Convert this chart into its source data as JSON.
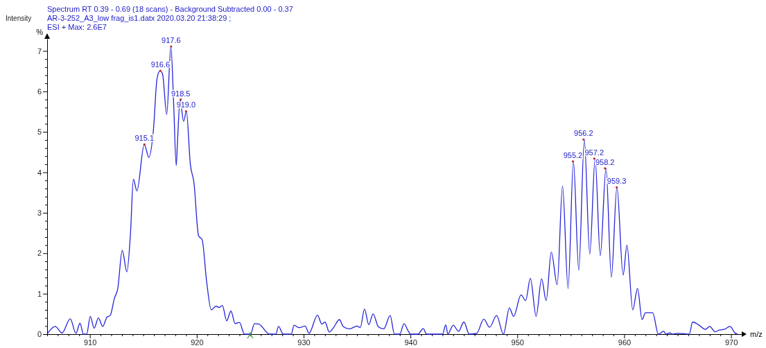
{
  "chart_data": {
    "type": "line",
    "title": "Spectrum RT 0.39 - 0.69 (18 scans) - Background Subtracted 0.00 - 0.37",
    "subtitle": "AR-3-252_A3_low frag_is1.datx 2020.03.20 21:38:29 ;",
    "ylabel": "%",
    "xlabel": "m/z",
    "grid": false,
    "marker": "none",
    "line_style": "solid",
    "annotations": [
      "Intensity",
      "ESI + Max: 2.6E7",
      {
        "text": "915.1",
        "x": 915.1,
        "y": 4.69
      },
      {
        "text": "916.6",
        "x": 916.6,
        "y": 6.51
      },
      {
        "text": "917.6",
        "x": 917.6,
        "y": 7.11
      },
      {
        "text": "918.5",
        "x": 918.5,
        "y": 5.8
      },
      {
        "text": "919.0",
        "x": 919.0,
        "y": 5.51
      },
      {
        "text": "955.2",
        "x": 955.2,
        "y": 4.27
      },
      {
        "text": "956.2",
        "x": 956.2,
        "y": 4.81
      },
      {
        "text": "957.2",
        "x": 957.2,
        "y": 4.34
      },
      {
        "text": "958.2",
        "x": 958.2,
        "y": 4.1
      },
      {
        "text": "959.3",
        "x": 959.3,
        "y": 3.63
      }
    ],
    "xlim": [
      906,
      971
    ],
    "ylim": [
      0,
      7.3
    ],
    "xticks": [
      {
        "value": 906,
        "label": null
      },
      {
        "value": 907,
        "label": null
      },
      {
        "value": 908,
        "label": null
      },
      {
        "value": 909,
        "label": null
      },
      910,
      {
        "value": 911,
        "label": null
      },
      {
        "value": 912,
        "label": null
      },
      {
        "value": 913,
        "label": null
      },
      {
        "value": 914,
        "label": null
      },
      {
        "value": 915,
        "label": null
      },
      {
        "value": 916,
        "label": null
      },
      {
        "value": 917,
        "label": null
      },
      {
        "value": 918,
        "label": null
      },
      {
        "value": 919,
        "label": null
      },
      920,
      {
        "value": 921,
        "label": null
      },
      {
        "value": 922,
        "label": null
      },
      {
        "value": 923,
        "label": null
      },
      {
        "value": 924,
        "label": null
      },
      {
        "value": 925,
        "label": null
      },
      {
        "value": 926,
        "label": null
      },
      {
        "value": 927,
        "label": null
      },
      {
        "value": 928,
        "label": null
      },
      {
        "value": 929,
        "label": null
      },
      930,
      {
        "value": 931,
        "label": null
      },
      {
        "value": 932,
        "label": null
      },
      {
        "value": 933,
        "label": null
      },
      {
        "value": 934,
        "label": null
      },
      {
        "value": 935,
        "label": null
      },
      {
        "value": 936,
        "label": null
      },
      {
        "value": 937,
        "label": null
      },
      {
        "value": 938,
        "label": null
      },
      {
        "value": 939,
        "label": null
      },
      940,
      {
        "value": 941,
        "label": null
      },
      {
        "value": 942,
        "label": null
      },
      {
        "value": 943,
        "label": null
      },
      {
        "value": 944,
        "label": null
      },
      {
        "value": 945,
        "label": null
      },
      {
        "value": 946,
        "label": null
      },
      {
        "value": 947,
        "label": null
      },
      {
        "value": 948,
        "label": null
      },
      {
        "value": 949,
        "label": null
      },
      950,
      {
        "value": 951,
        "label": null
      },
      {
        "value": 952,
        "label": null
      },
      {
        "value": 953,
        "label": null
      },
      {
        "value": 954,
        "label": null
      },
      {
        "value": 955,
        "label": null
      },
      {
        "value": 956,
        "label": null
      },
      {
        "value": 957,
        "label": null
      },
      {
        "value": 958,
        "label": null
      },
      {
        "value": 959,
        "label": null
      },
      960,
      {
        "value": 961,
        "label": null
      },
      {
        "value": 962,
        "label": null
      },
      {
        "value": 963,
        "label": null
      },
      {
        "value": 964,
        "label": null
      },
      {
        "value": 965,
        "label": null
      },
      {
        "value": 966,
        "label": null
      },
      {
        "value": 967,
        "label": null
      },
      {
        "value": 968,
        "label": null
      },
      {
        "value": 969,
        "label": null
      },
      970
    ],
    "yticks": [
      0,
      {
        "value": 0.2,
        "label": null
      },
      {
        "value": 0.4,
        "label": null
      },
      {
        "value": 0.6,
        "label": null
      },
      {
        "value": 0.8,
        "label": null
      },
      1,
      {
        "value": 1.2,
        "label": null
      },
      {
        "value": 1.4,
        "label": null
      },
      {
        "value": 1.6,
        "label": null
      },
      {
        "value": 1.8,
        "label": null
      },
      2,
      {
        "value": 2.2,
        "label": null
      },
      {
        "value": 2.4,
        "label": null
      },
      {
        "value": 2.6,
        "label": null
      },
      {
        "value": 2.8,
        "label": null
      },
      3,
      {
        "value": 3.2,
        "label": null
      },
      {
        "value": 3.4,
        "label": null
      },
      {
        "value": 3.6,
        "label": null
      },
      {
        "value": 3.8,
        "label": null
      },
      4,
      {
        "value": 4.2,
        "label": null
      },
      {
        "value": 4.4,
        "label": null
      },
      {
        "value": 4.6,
        "label": null
      },
      {
        "value": 4.8,
        "label": null
      },
      5,
      {
        "value": 5.2,
        "label": null
      },
      {
        "value": 5.4,
        "label": null
      },
      {
        "value": 5.6,
        "label": null
      },
      {
        "value": 5.8,
        "label": null
      },
      6,
      {
        "value": 6.2,
        "label": null
      },
      {
        "value": 6.4,
        "label": null
      },
      {
        "value": 6.6,
        "label": null
      },
      {
        "value": 6.8,
        "label": null
      },
      7
    ],
    "series": [
      {
        "color": "#2323d8",
        "x": [
          906.0,
          906.75,
          907.4,
          908.16,
          908.7,
          909.07,
          909.4,
          909.7,
          910.04,
          910.4,
          910.8,
          911.2,
          911.6,
          911.9,
          912.3,
          912.6,
          913.03,
          913.46,
          913.8,
          914.07,
          914.4,
          915.09,
          915.52,
          915.95,
          916.28,
          916.56,
          916.8,
          917.19,
          917.58,
          917.84,
          918.08,
          918.2,
          918.44,
          918.77,
          919.03,
          919.4,
          919.74,
          920.17,
          920.5,
          920.93,
          921.36,
          921.8,
          922.1,
          922.4,
          922.8,
          923.2,
          923.6,
          924.0,
          924.46,
          925.04,
          925.4,
          925.8,
          926.8,
          927.4,
          927.65,
          928.1,
          928.85,
          929.1,
          929.6,
          930.15,
          930.5,
          931.3,
          931.7,
          932.0,
          932.4,
          932.8,
          933.35,
          933.7,
          934.3,
          935.0,
          935.3,
          935.7,
          936.1,
          936.5,
          937.0,
          937.5,
          938.1,
          938.5,
          939.0,
          939.4,
          939.8,
          940.0,
          940.7,
          941.2,
          941.5,
          943.0,
          943.3,
          943.5,
          944.0,
          944.5,
          945.0,
          945.5,
          946.2,
          946.86,
          947.4,
          948.06,
          948.7,
          949.26,
          949.65,
          950.35,
          950.78,
          951.22,
          951.76,
          952.27,
          952.7,
          953.18,
          953.73,
          954.23,
          954.75,
          955.25,
          955.75,
          956.27,
          956.78,
          957.28,
          957.76,
          958.3,
          958.8,
          959.32,
          959.9,
          960.26,
          960.8,
          961.25,
          961.67,
          962.0,
          962.4,
          962.66,
          963.2,
          963.7,
          963.9,
          964.3,
          964.5,
          965.0,
          966.1,
          966.4,
          966.97,
          967.6,
          968.0,
          968.5,
          968.9,
          969.4,
          969.9,
          970.4,
          970.6
        ],
        "values": [
          0,
          0.19,
          0.03,
          0.38,
          0.02,
          0.27,
          0,
          0,
          0.44,
          0.15,
          0.4,
          0.19,
          0.42,
          0.46,
          0.89,
          1.11,
          2.07,
          1.54,
          2.49,
          3.83,
          3.54,
          4.69,
          4.37,
          5.06,
          6.31,
          6.51,
          6.43,
          5.43,
          7.11,
          5.69,
          4.17,
          4.77,
          5.8,
          5.26,
          5.51,
          4.2,
          3.74,
          2.43,
          2.34,
          1.29,
          0.6,
          0.69,
          0.66,
          0.71,
          0.33,
          0.57,
          0.26,
          0.29,
          0,
          0,
          0.26,
          0.25,
          0,
          0,
          0.19,
          0,
          0,
          0.22,
          0.16,
          0.2,
          0.02,
          0.47,
          0.25,
          0.3,
          0.05,
          0.16,
          0.36,
          0.19,
          0.13,
          0.2,
          0.16,
          0.62,
          0.23,
          0.5,
          0.18,
          0.13,
          0.46,
          0,
          0,
          0.26,
          0.07,
          0,
          0,
          0.14,
          0,
          0,
          0.23,
          0,
          0.22,
          0.07,
          0.3,
          0,
          0.02,
          0.37,
          0.17,
          0.46,
          0,
          0.65,
          0.44,
          0.97,
          0.83,
          1.38,
          0.44,
          1.37,
          0.83,
          2.03,
          1.22,
          3.66,
          1.13,
          4.27,
          1.58,
          4.81,
          1.98,
          4.34,
          1.94,
          4.1,
          1.41,
          3.63,
          1.46,
          2.2,
          0.6,
          1.13,
          0.36,
          0.53,
          0.53,
          0.53,
          0,
          0.07,
          0,
          0.03,
          0,
          0.02,
          0,
          0.3,
          0.23,
          0.12,
          0.19,
          0.06,
          0.1,
          0.12,
          0.19,
          0.02,
          0
        ]
      }
    ]
  }
}
